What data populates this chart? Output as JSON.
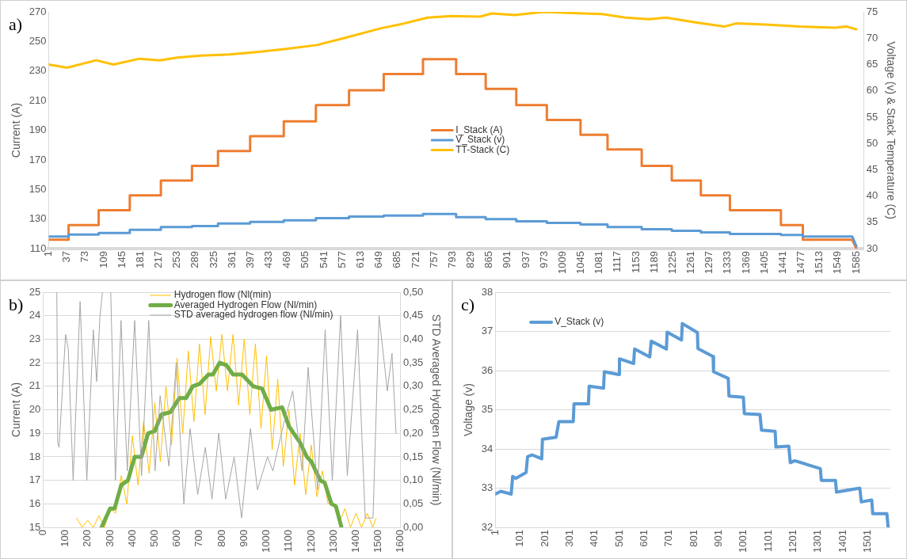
{
  "chart_data": [
    {
      "type": "line",
      "title": "a)",
      "ylabel": "Current (A)",
      "y2label": "Voltage (v) & Stack Temperature (C)",
      "grid": false,
      "legend": "center",
      "marker": "none",
      "xlim": [
        1,
        1600
      ],
      "xticks": [
        1,
        37,
        73,
        109,
        145,
        181,
        217,
        253,
        289,
        325,
        361,
        397,
        433,
        469,
        505,
        541,
        577,
        613,
        649,
        685,
        721,
        757,
        793,
        829,
        865,
        901,
        937,
        973,
        1009,
        1045,
        1081,
        1117,
        1153,
        1189,
        1225,
        1261,
        1297,
        1333,
        1369,
        1405,
        1441,
        1477,
        1513,
        1549,
        1585
      ],
      "ylim": [
        110,
        270
      ],
      "yticks": [
        110,
        130,
        150,
        170,
        190,
        210,
        230,
        250,
        270
      ],
      "y2lim": [
        30,
        75
      ],
      "y2ticks": [
        30,
        35,
        40,
        45,
        50,
        55,
        60,
        65,
        70,
        75
      ],
      "series": [
        {
          "name": "I_Stack (A)",
          "color": "#ed7d31",
          "x": [
            1,
            40,
            40,
            99,
            99,
            160,
            160,
            221,
            221,
            282,
            282,
            333,
            333,
            396,
            396,
            462,
            462,
            525,
            525,
            590,
            590,
            658,
            658,
            735,
            735,
            800,
            800,
            858,
            858,
            918,
            918,
            978,
            978,
            1044,
            1044,
            1097,
            1097,
            1164,
            1164,
            1223,
            1223,
            1280,
            1280,
            1337,
            1337,
            1437,
            1437,
            1480,
            1480,
            1577,
            1585
          ],
          "values": [
            116,
            116,
            126,
            126,
            136,
            136,
            146,
            146,
            156,
            156,
            166,
            166,
            176,
            176,
            186,
            186,
            196,
            196,
            207,
            207,
            217,
            217,
            228,
            228,
            238,
            238,
            228,
            228,
            218,
            218,
            207,
            207,
            197,
            197,
            187,
            187,
            177,
            177,
            166,
            166,
            156,
            156,
            146,
            146,
            136,
            136,
            126,
            126,
            116,
            116,
            110
          ]
        },
        {
          "name": "V_Stack (v)",
          "color": "#5b9bd5",
          "axis": "y2",
          "x": [
            1,
            40,
            40,
            99,
            99,
            160,
            160,
            221,
            221,
            282,
            282,
            333,
            333,
            396,
            396,
            462,
            462,
            525,
            525,
            590,
            590,
            658,
            658,
            735,
            735,
            800,
            800,
            858,
            858,
            918,
            918,
            978,
            978,
            1044,
            1044,
            1097,
            1097,
            1164,
            1164,
            1223,
            1223,
            1280,
            1280,
            1337,
            1337,
            1437,
            1437,
            1480,
            1480,
            1577,
            1585
          ],
          "values": [
            32.3,
            32.3,
            32.7,
            32.7,
            33.0,
            33.0,
            33.6,
            33.6,
            34.1,
            34.1,
            34.3,
            34.3,
            34.8,
            34.8,
            35.1,
            35.1,
            35.4,
            35.4,
            35.8,
            35.8,
            36.1,
            36.1,
            36.3,
            36.3,
            36.6,
            36.6,
            36.0,
            36.0,
            35.6,
            35.6,
            35.2,
            35.2,
            34.9,
            34.9,
            34.6,
            34.6,
            34.1,
            34.1,
            33.7,
            33.7,
            33.4,
            33.4,
            33.1,
            33.1,
            32.8,
            32.8,
            32.6,
            32.6,
            32.3,
            32.3,
            30.5
          ]
        },
        {
          "name": "TT-Stack (C)",
          "color": "#ffc000",
          "axis": "y2",
          "x": [
            1,
            37,
            94,
            128,
            179,
            219,
            253,
            299,
            356,
            413,
            470,
            527,
            584,
            653,
            698,
            744,
            790,
            847,
            870,
            915,
            972,
            1018,
            1086,
            1132,
            1178,
            1212,
            1269,
            1326,
            1349,
            1406,
            1474,
            1543,
            1566,
            1585
          ],
          "values": [
            65.0,
            64.4,
            65.8,
            65.0,
            66.1,
            65.8,
            66.3,
            66.7,
            66.9,
            67.4,
            68.0,
            68.7,
            70.1,
            71.9,
            72.8,
            73.9,
            74.2,
            74.1,
            74.7,
            74.4,
            75.0,
            74.8,
            74.6,
            73.9,
            73.6,
            73.9,
            73.0,
            72.2,
            72.8,
            72.6,
            72.2,
            72.0,
            72.2,
            71.7
          ]
        }
      ]
    },
    {
      "type": "line",
      "title": "b)",
      "ylabel": "Current (A)",
      "y2label": "STD Averaged Hydrogen Flow (Nl/min)",
      "grid": "y",
      "legend": "top",
      "marker": "none",
      "xlim": [
        0,
        1600
      ],
      "xticks": [
        0,
        100,
        200,
        300,
        400,
        500,
        600,
        700,
        800,
        900,
        1000,
        1100,
        1200,
        1300,
        1400,
        1500,
        1600
      ],
      "ylim": [
        15,
        25
      ],
      "yticks": [
        15,
        16,
        17,
        18,
        19,
        20,
        21,
        22,
        23,
        24,
        25
      ],
      "y2lim": [
        0,
        0.5
      ],
      "y2ticks": [
        {
          "value": 0,
          "label": "0,00"
        },
        {
          "value": 0.05,
          "label": "0,05"
        },
        {
          "value": 0.1,
          "label": "0,10"
        },
        {
          "value": 0.15,
          "label": "0,15"
        },
        {
          "value": 0.2,
          "label": "0,20"
        },
        {
          "value": 0.25,
          "label": "0,25"
        },
        {
          "value": 0.3,
          "label": "0,30"
        },
        {
          "value": 0.35,
          "label": "0,35"
        },
        {
          "value": 0.4,
          "label": "0,40"
        },
        {
          "value": 0.45,
          "label": "0,45"
        },
        {
          "value": 0.5,
          "label": "0,50"
        }
      ],
      "series": [
        {
          "name": "Hydrogen flow (Nl(min)",
          "color": "#ffc000",
          "x": [
            150,
            175,
            200,
            225,
            250,
            275,
            300,
            325,
            350,
            375,
            400,
            425,
            450,
            475,
            500,
            525,
            550,
            575,
            600,
            625,
            650,
            675,
            700,
            725,
            750,
            775,
            800,
            825,
            850,
            875,
            900,
            925,
            950,
            975,
            1000,
            1025,
            1050,
            1075,
            1100,
            1125,
            1150,
            1175,
            1200,
            1225,
            1250,
            1275,
            1300,
            1325,
            1350,
            1375,
            1400,
            1425,
            1450,
            1475,
            1490
          ],
          "values": [
            15.4,
            15.0,
            15.3,
            15.0,
            15.5,
            15.0,
            15.8,
            15.6,
            17.2,
            16.0,
            18.9,
            16.8,
            19.5,
            17.3,
            20.3,
            17.8,
            21.0,
            18.5,
            22.2,
            19.0,
            22.5,
            19.5,
            22.8,
            19.8,
            23.1,
            20.8,
            23.2,
            20.8,
            23.2,
            20.2,
            23.0,
            19.8,
            22.8,
            19.2,
            22.3,
            18.3,
            21.3,
            17.6,
            20.0,
            16.8,
            19.0,
            16.4,
            18.5,
            16.3,
            17.4,
            16.0,
            16.0,
            15.2,
            15.8,
            15.0,
            15.6,
            15.0,
            15.6,
            15.0,
            15.4
          ]
        },
        {
          "name": "Averaged Hydrogen Flow (Nl/min)",
          "color": "#70ad47",
          "x": [
            262,
            300,
            320,
            350,
            380,
            410,
            440,
            470,
            500,
            530,
            570,
            610,
            640,
            670,
            700,
            740,
            760,
            790,
            820,
            850,
            890,
            940,
            980,
            1020,
            1070,
            1100,
            1150,
            1180,
            1200,
            1240,
            1260,
            1290,
            1310,
            1335
          ],
          "values": [
            15.0,
            15.8,
            15.8,
            16.8,
            17.0,
            18.0,
            18.0,
            19.0,
            19.1,
            19.8,
            19.9,
            20.5,
            20.5,
            21.0,
            21.1,
            21.5,
            21.5,
            22.0,
            21.9,
            21.5,
            21.5,
            21.0,
            20.9,
            20.0,
            20.1,
            19.3,
            18.6,
            18.0,
            17.8,
            17.0,
            16.9,
            16.0,
            15.9,
            15.0
          ]
        },
        {
          "name": "STD averaged hydrogen flow (Nl/min)",
          "color": "#a5a5a5",
          "axis": "y2",
          "x": [
            62,
            66,
            72,
            101,
            113,
            135,
            166,
            196,
            225,
            240,
            255,
            266,
            285,
            303,
            324,
            349,
            377,
            410,
            441,
            473,
            501,
            524,
            563,
            596,
            630,
            658,
            692,
            726,
            756,
            786,
            817,
            855,
            888,
            928,
            959,
            1004,
            1028,
            1076,
            1117,
            1159,
            1186,
            1228,
            1262,
            1294,
            1331,
            1361,
            1407,
            1441,
            1476,
            1503,
            1540,
            1561,
            1579
          ],
          "values": [
            0.5,
            0.18,
            0.17,
            0.41,
            0.38,
            0.1,
            0.48,
            0.1,
            0.42,
            0.31,
            0.45,
            0.5,
            null,
            0.5,
            0.1,
            0.44,
            0.12,
            0.44,
            0.11,
            0.44,
            0.12,
            0.28,
            0.13,
            0.35,
            0.05,
            0.21,
            0.07,
            0.17,
            0.06,
            0.2,
            0.06,
            0.15,
            0.02,
            0.21,
            0.08,
            0.15,
            0.12,
            0.22,
            0.29,
            0.12,
            0.34,
            0.08,
            0.42,
            0.1,
            0.45,
            0.11,
            0.42,
            0.02,
            0.02,
            0.45,
            0.29,
            0.37,
            0.2
          ]
        }
      ]
    },
    {
      "type": "line",
      "title": "c)",
      "ylabel": "Voltage (v)",
      "grid": "y",
      "legend": "top left",
      "marker": "none",
      "xlim": [
        1,
        1592
      ],
      "xticks": [
        1,
        101,
        201,
        301,
        401,
        501,
        601,
        701,
        801,
        901,
        1001,
        1101,
        1201,
        1301,
        1401,
        1501
      ],
      "ylim": [
        32,
        38
      ],
      "yticks": [
        32,
        33,
        34,
        35,
        36,
        37,
        38
      ],
      "series": [
        {
          "name": "V_Stack (v)",
          "color": "#5b9bd5",
          "x": [
            1,
            23,
            65,
            71,
            83,
            125,
            131,
            149,
            188,
            191,
            246,
            257,
            315,
            318,
            376,
            379,
            437,
            440,
            498,
            501,
            558,
            562,
            623,
            629,
            690,
            693,
            751,
            754,
            815,
            817,
            878,
            880,
            939,
            942,
            1000,
            1004,
            1067,
            1073,
            1128,
            1131,
            1183,
            1189,
            1207,
            1310,
            1314,
            1371,
            1375,
            1469,
            1475,
            1517,
            1521,
            1578,
            1583
          ],
          "values": [
            32.85,
            32.92,
            32.85,
            33.3,
            33.25,
            33.4,
            33.8,
            33.85,
            33.75,
            34.25,
            34.3,
            34.7,
            34.7,
            35.15,
            35.15,
            35.6,
            35.55,
            35.97,
            35.9,
            36.3,
            36.18,
            36.55,
            36.35,
            36.75,
            36.55,
            36.98,
            36.78,
            37.2,
            36.97,
            36.56,
            36.36,
            35.97,
            35.8,
            35.35,
            35.32,
            34.9,
            34.88,
            34.48,
            34.45,
            34.05,
            34.07,
            33.65,
            33.7,
            33.5,
            33.2,
            33.2,
            32.9,
            33.0,
            32.65,
            32.7,
            32.35,
            32.35,
            32.0
          ]
        }
      ]
    }
  ]
}
